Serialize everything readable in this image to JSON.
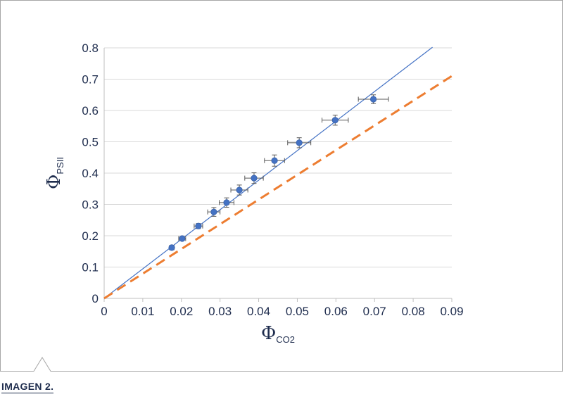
{
  "caption": "IMAGEN 2.",
  "colors": {
    "series": "#4472c4",
    "fit_line": "#4472c4",
    "reference_line": "#ed7d31",
    "text": "#1f2d4e",
    "grid": "#d9d9d9",
    "frame": "#a6a6a6"
  },
  "chart_data": {
    "type": "scatter",
    "title": "",
    "xlabel": {
      "symbol": "Φ",
      "subscript": "CO2"
    },
    "ylabel": {
      "symbol": "Φ",
      "subscript": "PSII"
    },
    "xlim": [
      0,
      0.09
    ],
    "ylim": [
      0,
      0.8
    ],
    "x_ticks": [
      0,
      0.01,
      0.02,
      0.03,
      0.04,
      0.05,
      0.06,
      0.07,
      0.08,
      0.09
    ],
    "x_tick_labels": [
      "0",
      "0.01",
      "0.02",
      "0.03",
      "0.04",
      "0.05",
      "0.06",
      "0.07",
      "0.08",
      "0.09"
    ],
    "y_ticks": [
      0,
      0.1,
      0.2,
      0.3,
      0.4,
      0.5,
      0.6,
      0.7,
      0.8
    ],
    "y_tick_labels": [
      "0",
      "0.1",
      "0.2",
      "0.3",
      "0.4",
      "0.5",
      "0.6",
      "0.7",
      "0.8"
    ],
    "grid": "horizontal",
    "points": [
      {
        "x": 0.0175,
        "y": 0.162,
        "xerr": 0.0006,
        "yerr": 0.006
      },
      {
        "x": 0.0202,
        "y": 0.191,
        "xerr": 0.0009,
        "yerr": 0.006
      },
      {
        "x": 0.0244,
        "y": 0.231,
        "xerr": 0.0011,
        "yerr": 0.008
      },
      {
        "x": 0.0284,
        "y": 0.276,
        "xerr": 0.0016,
        "yerr": 0.014
      },
      {
        "x": 0.0317,
        "y": 0.306,
        "xerr": 0.0019,
        "yerr": 0.015
      },
      {
        "x": 0.035,
        "y": 0.346,
        "xerr": 0.0022,
        "yerr": 0.016
      },
      {
        "x": 0.0388,
        "y": 0.384,
        "xerr": 0.0024,
        "yerr": 0.017
      },
      {
        "x": 0.0441,
        "y": 0.44,
        "xerr": 0.0026,
        "yerr": 0.018
      },
      {
        "x": 0.0505,
        "y": 0.497,
        "xerr": 0.003,
        "yerr": 0.016
      },
      {
        "x": 0.0598,
        "y": 0.569,
        "xerr": 0.0034,
        "yerr": 0.016
      },
      {
        "x": 0.0697,
        "y": 0.636,
        "xerr": 0.0039,
        "yerr": 0.014
      }
    ],
    "lines": [
      {
        "style": "solid",
        "color": "#4472c4",
        "from": [
          0,
          0
        ],
        "to": [
          0.085,
          0.802
        ]
      },
      {
        "style": "dashed",
        "color": "#ed7d31",
        "from": [
          0,
          0
        ],
        "to": [
          0.09,
          0.71
        ]
      }
    ]
  }
}
